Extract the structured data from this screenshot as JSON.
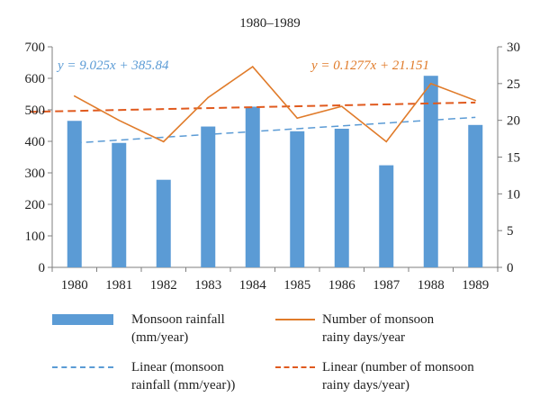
{
  "chart_data": {
    "type": "bar",
    "title": "1980–1989",
    "categories": [
      "1980",
      "1981",
      "1982",
      "1983",
      "1984",
      "1985",
      "1986",
      "1987",
      "1988",
      "1989"
    ],
    "series": [
      {
        "name": "Monsoon rainfall (mm/year)",
        "type": "bar",
        "axis": "left",
        "color": "#5b9bd5",
        "values": [
          465,
          395,
          278,
          447,
          510,
          432,
          440,
          324,
          608,
          452
        ]
      },
      {
        "name": "Number of monsoon rainy days/year",
        "type": "line",
        "axis": "right",
        "color": "#e07b2a",
        "values": [
          23.3,
          20.0,
          17.1,
          23.1,
          27.3,
          20.3,
          21.9,
          17.1,
          25.0,
          22.7
        ]
      }
    ],
    "trendlines": [
      {
        "name": "Linear (monsoon rainfall (mm/year))",
        "axis": "left",
        "color": "#5b9bd5",
        "style": "dashed",
        "slope": 9.025,
        "intercept": 385.84,
        "x_start": 1,
        "x_end": 10,
        "equation": "y = 9.025x + 385.84"
      },
      {
        "name": "Linear (number of monsoon rainy days/year)",
        "axis": "right",
        "color": "#e05a1e",
        "style": "dashed",
        "slope": 0.1277,
        "intercept": 21.151,
        "x_start": 0,
        "x_end": 10,
        "equation": "y = 0.1277x + 21.151"
      }
    ],
    "y_left": {
      "min": 0,
      "max": 700,
      "ticks": [
        "0",
        "100",
        "200",
        "300",
        "400",
        "500",
        "600",
        "700"
      ]
    },
    "y_right": {
      "min": 0,
      "max": 30,
      "ticks": [
        "0",
        "5",
        "10",
        "15",
        "20",
        "25",
        "30"
      ]
    },
    "grid": false,
    "legend_position": "bottom"
  },
  "legend": {
    "bar_line1": "Monsoon rainfall",
    "bar_line2": "(mm/year)",
    "line_line1": "Number of monsoon",
    "line_line2": "rainy days/year",
    "trend1_line1": "Linear (monsoon",
    "trend1_line2": "rainfall (mm/year))",
    "trend2_line1": "Linear (number of monsoon",
    "trend2_line2": "rainy days/year)"
  }
}
